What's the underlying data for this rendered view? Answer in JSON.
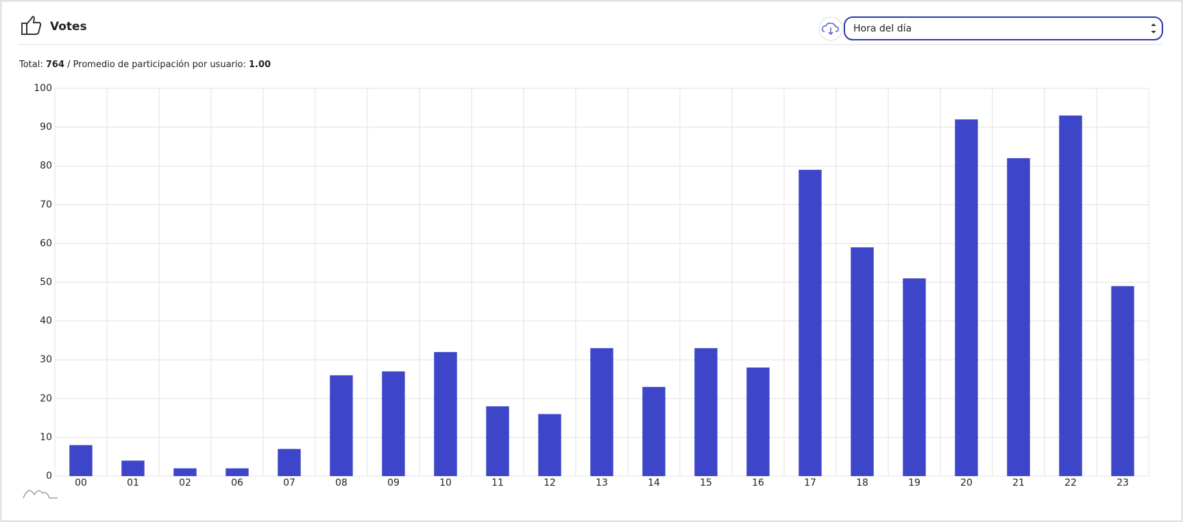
{
  "header": {
    "title": "Votes",
    "select": "Hora del día"
  },
  "summary": {
    "total_label": "Total:",
    "total": 764,
    "average_label": "/ Promedio de participación por usuario:",
    "average": "1.00"
  },
  "chart_data": {
    "type": "bar",
    "categories": [
      "00",
      "01",
      "02",
      "06",
      "07",
      "08",
      "09",
      "10",
      "11",
      "12",
      "13",
      "14",
      "15",
      "16",
      "17",
      "18",
      "19",
      "20",
      "21",
      "22",
      "23"
    ],
    "values": [
      8,
      4,
      2,
      2,
      7,
      26,
      27,
      32,
      18,
      16,
      33,
      23,
      33,
      28,
      79,
      59,
      51,
      92,
      82,
      93,
      49
    ],
    "color": "#3d46c9",
    "ylim": [
      0,
      100
    ],
    "yticks": [
      0,
      10,
      20,
      30,
      40,
      50,
      60,
      70,
      80,
      90,
      100
    ],
    "grid": true
  }
}
